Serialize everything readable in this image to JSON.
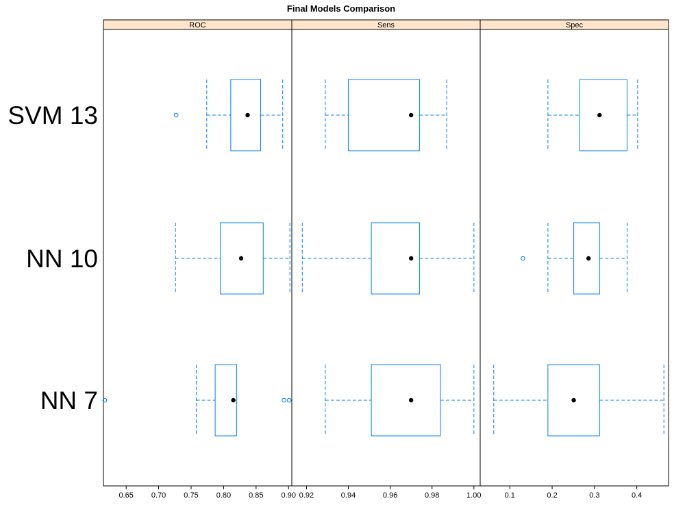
{
  "chart_data": {
    "type": "boxplot",
    "title": "Final Models Comparison",
    "models": [
      "SVM 13",
      "NN 10",
      "NN 7"
    ],
    "colors": {
      "box": "#0080ff",
      "strip": "#ffe5cc",
      "median_dot": "#000000"
    },
    "panels": [
      {
        "name": "ROC",
        "xlim": [
          0.615,
          0.905
        ],
        "ticks": [
          0.65,
          0.7,
          0.75,
          0.8,
          0.85,
          0.9
        ],
        "tick_labels": [
          "0.65",
          "0.70",
          "0.75",
          "0.80",
          "0.85",
          "0.90"
        ],
        "boxes": [
          {
            "model": "SVM 13",
            "whisker_low": 0.774,
            "q1": 0.811,
            "median": 0.837,
            "q3": 0.857,
            "whisker_high": 0.891,
            "outliers": [
              0.727
            ]
          },
          {
            "model": "NN 10",
            "whisker_low": 0.726,
            "q1": 0.795,
            "median": 0.827,
            "q3": 0.861,
            "whisker_high": 0.902,
            "outliers": []
          },
          {
            "model": "NN 7",
            "whisker_low": 0.758,
            "q1": 0.787,
            "median": 0.815,
            "q3": 0.82,
            "whisker_high": null,
            "outliers": [
              0.617,
              0.893,
              0.901
            ]
          }
        ]
      },
      {
        "name": "Sens",
        "xlim": [
          0.913,
          1.003
        ],
        "ticks": [
          0.92,
          0.94,
          0.96,
          0.98,
          1.0
        ],
        "tick_labels": [
          "0.92",
          "0.94",
          "0.96",
          "0.98",
          "1.00"
        ],
        "boxes": [
          {
            "model": "SVM 13",
            "whisker_low": 0.929,
            "q1": 0.94,
            "median": 0.97,
            "q3": 0.974,
            "whisker_high": 0.987,
            "outliers": []
          },
          {
            "model": "NN 10",
            "whisker_low": 0.918,
            "q1": 0.951,
            "median": 0.97,
            "q3": 0.974,
            "whisker_high": 1.0,
            "outliers": []
          },
          {
            "model": "NN 7",
            "whisker_low": 0.929,
            "q1": 0.951,
            "median": 0.97,
            "q3": 0.984,
            "whisker_high": 1.0,
            "outliers": []
          }
        ]
      },
      {
        "name": "Spec",
        "xlim": [
          0.03,
          0.475
        ],
        "ticks": [
          0.1,
          0.2,
          0.3,
          0.4
        ],
        "tick_labels": [
          "0.1",
          "0.2",
          "0.3",
          "0.4"
        ],
        "boxes": [
          {
            "model": "SVM 13",
            "whisker_low": 0.19,
            "q1": 0.265,
            "median": 0.312,
            "q3": 0.377,
            "whisker_high": 0.402,
            "outliers": []
          },
          {
            "model": "NN 10",
            "whisker_low": 0.19,
            "q1": 0.251,
            "median": 0.286,
            "q3": 0.312,
            "whisker_high": 0.377,
            "outliers": [
              0.131
            ]
          },
          {
            "model": "NN 7",
            "whisker_low": 0.062,
            "q1": 0.19,
            "median": 0.251,
            "q3": 0.312,
            "whisker_high": 0.464,
            "outliers": []
          }
        ]
      }
    ]
  }
}
